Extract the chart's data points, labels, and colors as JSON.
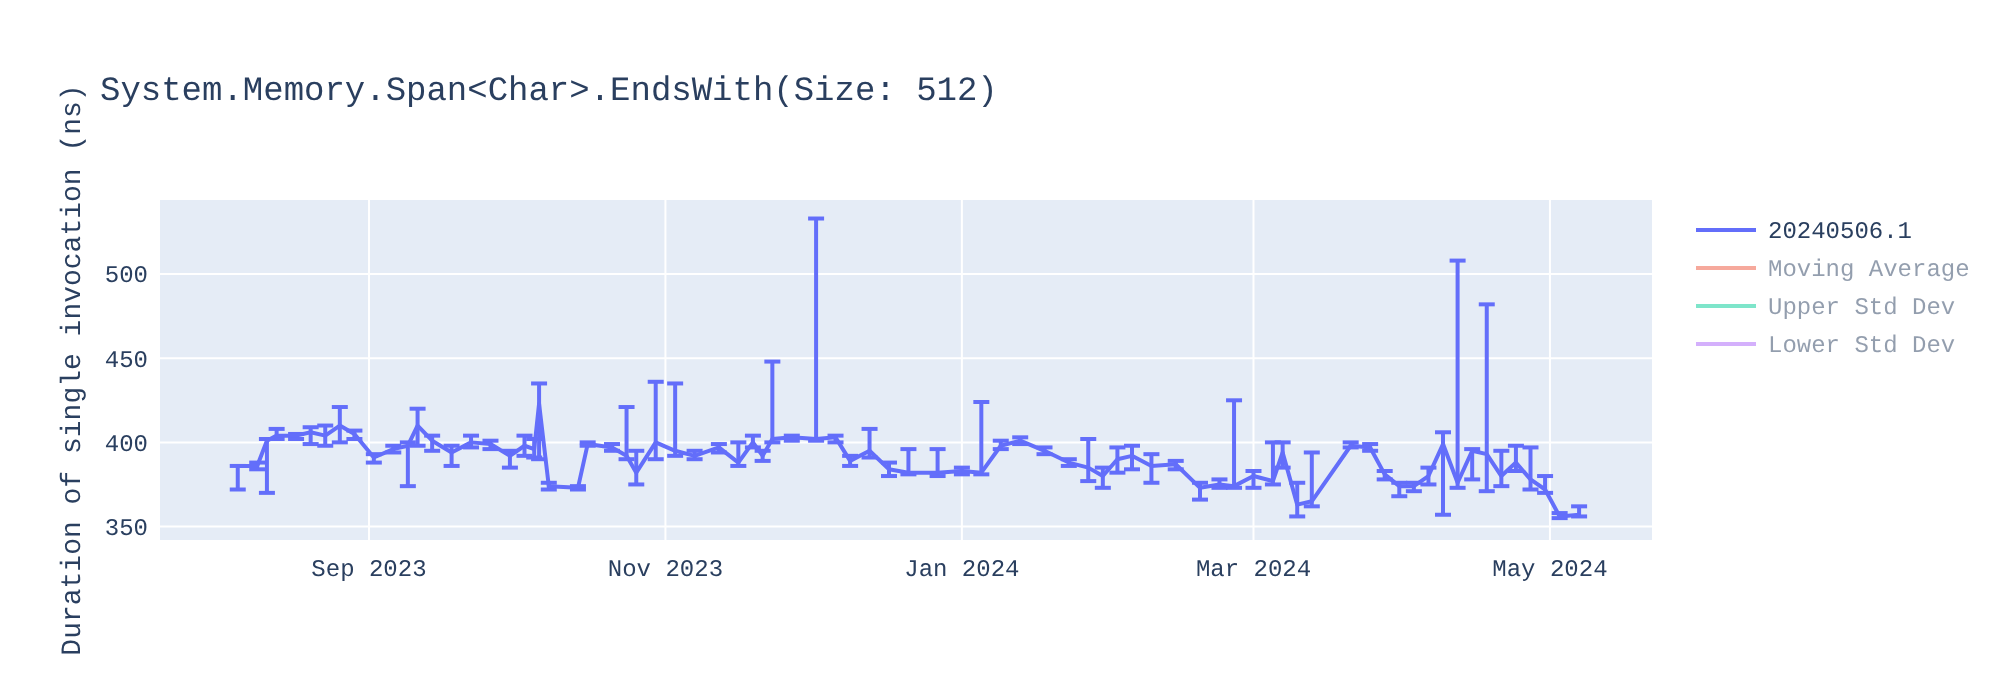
{
  "chart_data": {
    "type": "line",
    "title": "System.Memory.Span<Char>.EndsWith(Size: 512)",
    "ylabel": "Duration of single invocation (ns)",
    "xlim": [
      "2023-07-20",
      "2024-05-22"
    ],
    "xticks": [
      {
        "value": "2023-09-01",
        "label": "Sep 2023"
      },
      {
        "value": "2023-11-01",
        "label": "Nov 2023"
      },
      {
        "value": "2024-01-01",
        "label": "Jan 2024"
      },
      {
        "value": "2024-03-01",
        "label": "Mar 2024"
      },
      {
        "value": "2024-05-01",
        "label": "May 2024"
      }
    ],
    "ylim": [
      342,
      544
    ],
    "yticks": [
      350,
      400,
      450,
      500
    ],
    "grid": true,
    "legend": "right",
    "series": [
      {
        "name": "20240506.1",
        "color": "#636efa",
        "x": [
          "2023-08-05",
          "2023-08-09",
          "2023-08-11",
          "2023-08-13",
          "2023-08-17",
          "2023-08-20",
          "2023-08-23",
          "2023-08-26",
          "2023-08-29",
          "2023-09-02",
          "2023-09-06",
          "2023-09-09",
          "2023-09-11",
          "2023-09-14",
          "2023-09-18",
          "2023-09-22",
          "2023-09-26",
          "2023-09-30",
          "2023-10-03",
          "2023-10-05",
          "2023-10-06",
          "2023-10-08",
          "2023-10-14",
          "2023-10-16",
          "2023-10-21",
          "2023-10-24",
          "2023-10-26",
          "2023-10-30",
          "2023-11-03",
          "2023-11-07",
          "2023-11-12",
          "2023-11-16",
          "2023-11-19",
          "2023-11-21",
          "2023-11-23",
          "2023-11-27",
          "2023-12-02",
          "2023-12-06",
          "2023-12-09",
          "2023-12-13",
          "2023-12-17",
          "2023-12-21",
          "2023-12-27",
          "2024-01-01",
          "2024-01-05",
          "2024-01-09",
          "2024-01-13",
          "2024-01-18",
          "2024-01-23",
          "2024-01-27",
          "2024-01-30",
          "2024-02-02",
          "2024-02-05",
          "2024-02-09",
          "2024-02-14",
          "2024-02-19",
          "2024-02-23",
          "2024-02-26",
          "2024-03-01",
          "2024-03-05",
          "2024-03-07",
          "2024-03-10",
          "2024-03-13",
          "2024-03-21",
          "2024-03-25",
          "2024-03-28",
          "2024-03-31",
          "2024-04-03",
          "2024-04-06",
          "2024-04-09",
          "2024-04-12",
          "2024-04-15",
          "2024-04-18",
          "2024-04-21",
          "2024-04-24",
          "2024-04-27",
          "2024-04-30",
          "2024-05-03",
          "2024-05-07"
        ],
        "values": [
          386,
          386,
          401,
          404,
          404,
          406,
          404,
          410,
          405,
          391,
          396,
          398,
          410,
          401,
          394,
          400,
          399,
          392,
          398,
          396,
          423,
          374,
          373,
          399,
          397,
          392,
          382,
          400,
          395,
          392,
          397,
          388,
          400,
          392,
          402,
          403,
          402,
          403,
          389,
          395,
          384,
          382,
          382,
          383,
          382,
          398,
          401,
          395,
          388,
          385,
          380,
          390,
          392,
          386,
          387,
          373,
          375,
          374,
          380,
          377,
          394,
          363,
          365,
          398,
          397,
          381,
          374,
          374,
          380,
          399,
          376,
          395,
          393,
          380,
          388,
          378,
          372,
          356,
          357
        ],
        "errors": [
          [
            372,
            386
          ],
          [
            384,
            388
          ],
          [
            370,
            402
          ],
          [
            402,
            408
          ],
          [
            402,
            405
          ],
          [
            399,
            409
          ],
          [
            398,
            410
          ],
          [
            400,
            421
          ],
          [
            402,
            407
          ],
          [
            388,
            393
          ],
          [
            394,
            398
          ],
          [
            374,
            400
          ],
          [
            398,
            420
          ],
          [
            395,
            404
          ],
          [
            386,
            398
          ],
          [
            397,
            404
          ],
          [
            396,
            401
          ],
          [
            385,
            395
          ],
          [
            392,
            404
          ],
          [
            391,
            402
          ],
          [
            390,
            435
          ],
          [
            372,
            376
          ],
          [
            372,
            374
          ],
          [
            398,
            400
          ],
          [
            395,
            399
          ],
          [
            390,
            421
          ],
          [
            375,
            395
          ],
          [
            390,
            436
          ],
          [
            392,
            435
          ],
          [
            390,
            395
          ],
          [
            394,
            399
          ],
          [
            386,
            400
          ],
          [
            397,
            404
          ],
          [
            389,
            395
          ],
          [
            400,
            448
          ],
          [
            401,
            404
          ],
          [
            401,
            533
          ],
          [
            400,
            404
          ],
          [
            386,
            392
          ],
          [
            391,
            408
          ],
          [
            380,
            388
          ],
          [
            381,
            396
          ],
          [
            380,
            396
          ],
          [
            381,
            385
          ],
          [
            381,
            424
          ],
          [
            396,
            401
          ],
          [
            399,
            403
          ],
          [
            393,
            397
          ],
          [
            386,
            390
          ],
          [
            377,
            402
          ],
          [
            373,
            385
          ],
          [
            382,
            397
          ],
          [
            384,
            398
          ],
          [
            376,
            393
          ],
          [
            384,
            389
          ],
          [
            366,
            376
          ],
          [
            373,
            378
          ],
          [
            373,
            425
          ],
          [
            373,
            383
          ],
          [
            375,
            400
          ],
          [
            385,
            400
          ],
          [
            356,
            376
          ],
          [
            362,
            394
          ],
          [
            397,
            400
          ],
          [
            395,
            399
          ],
          [
            378,
            383
          ],
          [
            368,
            376
          ],
          [
            371,
            376
          ],
          [
            375,
            385
          ],
          [
            357,
            406
          ],
          [
            373,
            508
          ],
          [
            378,
            396
          ],
          [
            371,
            482
          ],
          [
            374,
            395
          ],
          [
            383,
            398
          ],
          [
            372,
            397
          ],
          [
            370,
            380
          ],
          [
            355,
            358
          ],
          [
            356,
            362
          ]
        ]
      },
      {
        "name": "Moving Average",
        "color": "#ef553b"
      },
      {
        "name": "Upper Std Dev",
        "color": "#00cc96"
      },
      {
        "name": "Lower Std Dev",
        "color": "#ab63fa"
      }
    ]
  }
}
